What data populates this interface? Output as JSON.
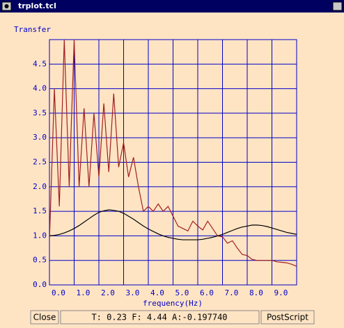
{
  "window": {
    "title": "trplot.tcl",
    "buttons": [
      "Close",
      "PostScript"
    ],
    "status": "T: 0.23 F: 4.44 A:-0.197740"
  },
  "chart_data": {
    "type": "line",
    "ylabel": "Transfer",
    "xlabel": "frequency(Hz)",
    "x": [
      0,
      0.2,
      0.4,
      0.6,
      0.8,
      1,
      1.2,
      1.4,
      1.6,
      1.8,
      2,
      2.2,
      2.4,
      2.6,
      2.8,
      3,
      3.2,
      3.4,
      3.6,
      3.8,
      4,
      4.2,
      4.4,
      4.6,
      4.8,
      5,
      5.2,
      5.4,
      5.6,
      5.8,
      6,
      6.2,
      6.4,
      6.6,
      6.8,
      7,
      7.2,
      7.4,
      7.6,
      7.8,
      8,
      8.2,
      8.4,
      8.6,
      8.8,
      9,
      9.2,
      9.4,
      9.6,
      9.8,
      10
    ],
    "series": [
      {
        "color": "#a02020",
        "values": [
          0.9,
          4.0,
          1.6,
          5.0,
          2.0,
          5.0,
          2.0,
          3.6,
          2.0,
          3.5,
          2.2,
          3.7,
          2.3,
          3.9,
          2.4,
          2.9,
          2.2,
          2.6,
          2.0,
          1.5,
          1.6,
          1.5,
          1.65,
          1.5,
          1.6,
          1.4,
          1.2,
          1.15,
          1.1,
          1.3,
          1.2,
          1.12,
          1.3,
          1.15,
          1.0,
          0.98,
          0.85,
          0.9,
          0.75,
          0.62,
          0.6,
          0.52,
          0.5,
          0.5,
          0.5,
          0.5,
          0.47,
          0.46,
          0.45,
          0.42,
          0.38
        ]
      },
      {
        "color": "#000000",
        "values": [
          1.0,
          1.01,
          1.03,
          1.06,
          1.1,
          1.15,
          1.21,
          1.28,
          1.35,
          1.42,
          1.48,
          1.51,
          1.53,
          1.52,
          1.5,
          1.46,
          1.4,
          1.34,
          1.27,
          1.2,
          1.14,
          1.09,
          1.04,
          1.0,
          0.97,
          0.95,
          0.93,
          0.92,
          0.92,
          0.92,
          0.92,
          0.93,
          0.95,
          0.97,
          1.0,
          1.03,
          1.07,
          1.11,
          1.15,
          1.18,
          1.2,
          1.22,
          1.22,
          1.21,
          1.19,
          1.16,
          1.13,
          1.1,
          1.07,
          1.05,
          1.03
        ]
      }
    ],
    "xlim": [
      0,
      10
    ],
    "xticks": [
      {
        "value": 0,
        "label": "0.0"
      },
      {
        "value": 1,
        "label": "1.0"
      },
      {
        "value": 2,
        "label": "2.0"
      },
      {
        "value": 3,
        "label": "3.0"
      },
      {
        "value": 4,
        "label": "4.0"
      },
      {
        "value": 5,
        "label": "5.0"
      },
      {
        "value": 6,
        "label": "6.0"
      },
      {
        "value": 7,
        "label": "7.0"
      },
      {
        "value": 8,
        "label": "8.0"
      },
      {
        "value": 9,
        "label": "9.0"
      }
    ],
    "ylim": [
      0,
      5
    ],
    "yticks": [
      {
        "value": 0,
        "label": "0.0"
      },
      {
        "value": 0.5,
        "label": "0.5"
      },
      {
        "value": 1,
        "label": "1.0"
      },
      {
        "value": 1.5,
        "label": "1.5"
      },
      {
        "value": 2,
        "label": "2.0"
      },
      {
        "value": 2.5,
        "label": "2.5"
      },
      {
        "value": 3,
        "label": "3.0"
      },
      {
        "value": 3.5,
        "label": "3.5"
      },
      {
        "value": 4,
        "label": "4.0"
      },
      {
        "value": 4.5,
        "label": "4.5"
      }
    ],
    "grid": true,
    "grid_color": "#0000c8"
  }
}
